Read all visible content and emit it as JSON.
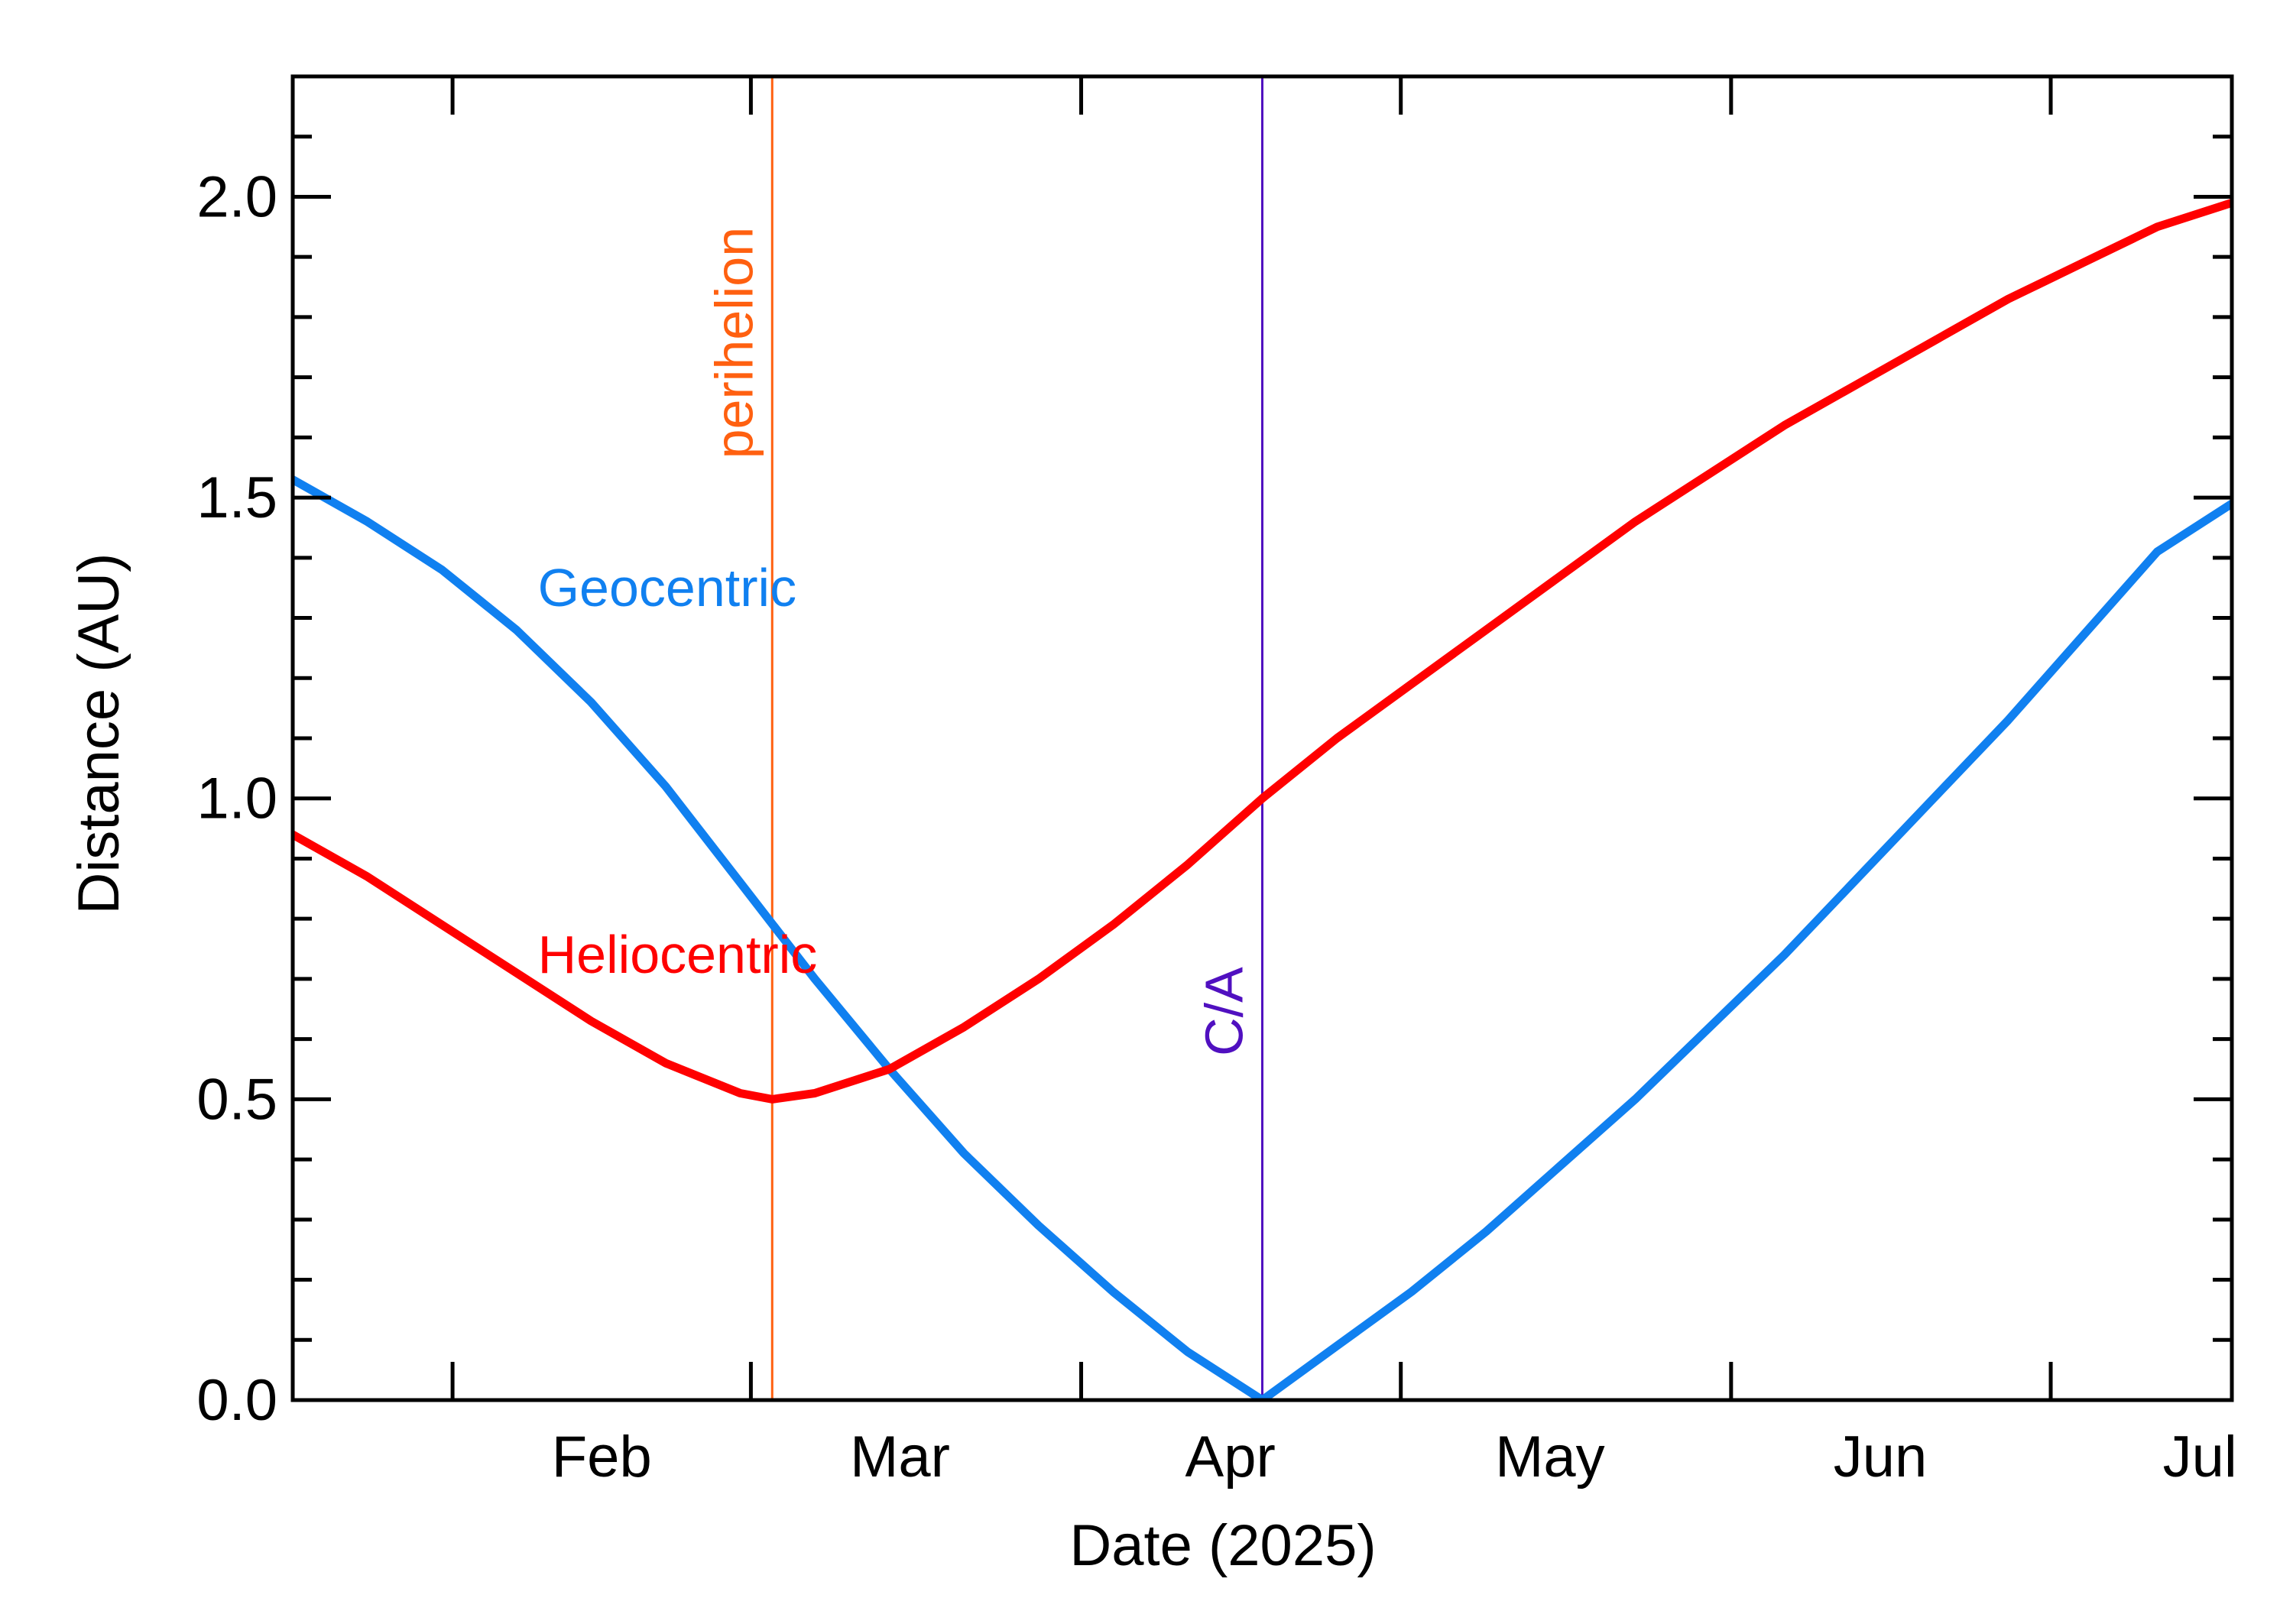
{
  "chart_data": {
    "type": "line",
    "title": "",
    "xlabel": "Date (2025)",
    "ylabel": "Distance (AU)",
    "x_start": "2025-01-17",
    "x_end": "2025-07-18",
    "ylim": [
      0,
      2.2
    ],
    "yticks": [
      {
        "value": 0.0,
        "label": "0.0"
      },
      {
        "value": 0.5,
        "label": "0.5"
      },
      {
        "value": 1.0,
        "label": "1.0"
      },
      {
        "value": 1.5,
        "label": "1.5"
      },
      {
        "value": 2.0,
        "label": "2.0"
      }
    ],
    "y_minor_step": 0.1,
    "month_ticks": [
      "2025-02-01",
      "2025-03-01",
      "2025-04-01",
      "2025-05-01",
      "2025-06-01",
      "2025-07-01"
    ],
    "month_labels": [
      {
        "date": "2025-02-15",
        "label": "Feb"
      },
      {
        "date": "2025-03-15",
        "label": "Mar"
      },
      {
        "date": "2025-04-15",
        "label": "Apr"
      },
      {
        "date": "2025-05-15",
        "label": "May"
      },
      {
        "date": "2025-06-15",
        "label": "Jun"
      },
      {
        "date": "2025-07-15",
        "label": "Jul"
      }
    ],
    "grid": false,
    "series": [
      {
        "name": "Geocentric",
        "color": "#1080f0",
        "points": [
          [
            "2025-01-17",
            1.53
          ],
          [
            "2025-01-24",
            1.46
          ],
          [
            "2025-01-31",
            1.38
          ],
          [
            "2025-02-07",
            1.28
          ],
          [
            "2025-02-14",
            1.16
          ],
          [
            "2025-02-21",
            1.02
          ],
          [
            "2025-02-28",
            0.86
          ],
          [
            "2025-03-07",
            0.7
          ],
          [
            "2025-03-14",
            0.55
          ],
          [
            "2025-03-21",
            0.41
          ],
          [
            "2025-03-28",
            0.29
          ],
          [
            "2025-04-04",
            0.18
          ],
          [
            "2025-04-11",
            0.08
          ],
          [
            "2025-04-18",
            0.0
          ],
          [
            "2025-04-25",
            0.09
          ],
          [
            "2025-05-02",
            0.18
          ],
          [
            "2025-05-09",
            0.28
          ],
          [
            "2025-05-16",
            0.39
          ],
          [
            "2025-05-23",
            0.5
          ],
          [
            "2025-05-30",
            0.62
          ],
          [
            "2025-06-06",
            0.74
          ],
          [
            "2025-06-13",
            0.87
          ],
          [
            "2025-06-20",
            1.0
          ],
          [
            "2025-06-27",
            1.13
          ],
          [
            "2025-07-04",
            1.27
          ],
          [
            "2025-07-11",
            1.41
          ],
          [
            "2025-07-18",
            1.49
          ]
        ]
      },
      {
        "name": "Heliocentric",
        "color": "#ff0000",
        "points": [
          [
            "2025-01-17",
            0.94
          ],
          [
            "2025-01-24",
            0.87
          ],
          [
            "2025-01-31",
            0.79
          ],
          [
            "2025-02-07",
            0.71
          ],
          [
            "2025-02-14",
            0.63
          ],
          [
            "2025-02-21",
            0.56
          ],
          [
            "2025-02-28",
            0.51
          ],
          [
            "2025-03-03",
            0.5
          ],
          [
            "2025-03-07",
            0.51
          ],
          [
            "2025-03-14",
            0.55
          ],
          [
            "2025-03-21",
            0.62
          ],
          [
            "2025-03-28",
            0.7
          ],
          [
            "2025-04-04",
            0.79
          ],
          [
            "2025-04-11",
            0.89
          ],
          [
            "2025-04-18",
            1.0
          ],
          [
            "2025-04-25",
            1.1
          ],
          [
            "2025-05-02",
            1.19
          ],
          [
            "2025-05-09",
            1.28
          ],
          [
            "2025-05-16",
            1.37
          ],
          [
            "2025-05-23",
            1.46
          ],
          [
            "2025-05-30",
            1.54
          ],
          [
            "2025-06-06",
            1.62
          ],
          [
            "2025-06-13",
            1.69
          ],
          [
            "2025-06-20",
            1.76
          ],
          [
            "2025-06-27",
            1.83
          ],
          [
            "2025-07-04",
            1.89
          ],
          [
            "2025-07-11",
            1.95
          ],
          [
            "2025-07-18",
            1.99
          ]
        ]
      }
    ],
    "series_labels": [
      {
        "text": "Geocentric",
        "color": "#1080f0",
        "date": "2025-02-09",
        "y": 1.32
      },
      {
        "text": "Heliocentric",
        "color": "#ff0000",
        "date": "2025-02-09",
        "y": 0.71
      }
    ],
    "events": [
      {
        "label": "perihelion",
        "date": "2025-03-03",
        "color": "#ff6010",
        "label_y": 1.95
      },
      {
        "label": "C/A",
        "date": "2025-04-18",
        "color": "#5010c0",
        "label_y": 0.72
      }
    ]
  }
}
